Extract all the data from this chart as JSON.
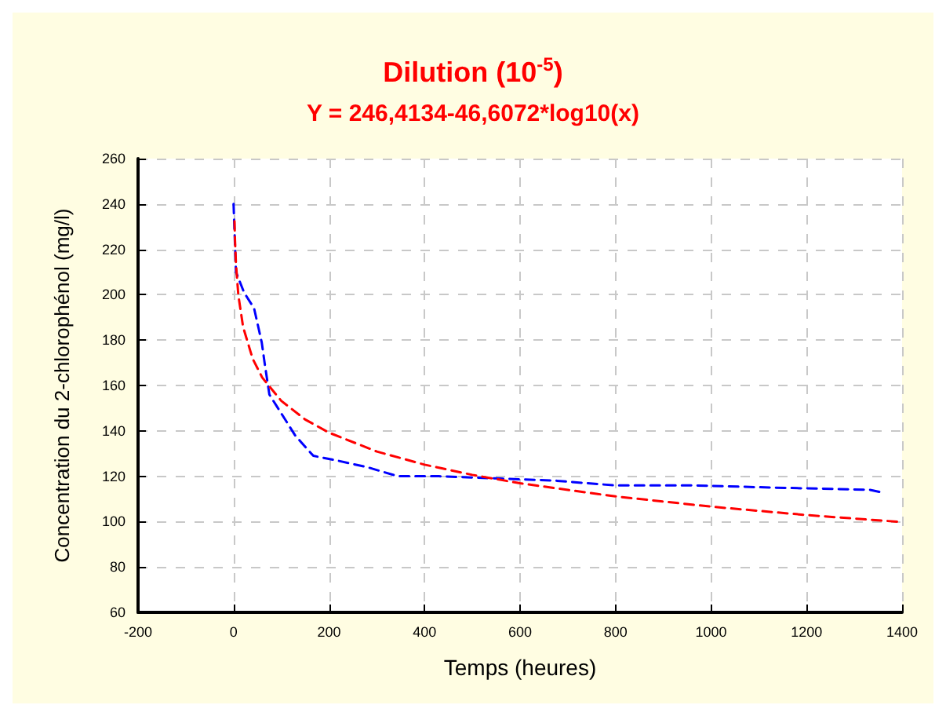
{
  "chart_data": {
    "type": "line",
    "title": "Dilution (10$^{-5}$)",
    "subtitle": "Y = 246,4134-46,6072*log10(x)",
    "xlabel": "Temps (heures)",
    "ylabel": "Concentration du 2-chlorophénol (mg/l)",
    "xlim": [
      -200,
      1400
    ],
    "xticks": [
      -200,
      0,
      200,
      400,
      600,
      800,
      1000,
      1200,
      1400
    ],
    "ylim": [
      60,
      260
    ],
    "yticks": [
      60,
      80,
      100,
      120,
      140,
      160,
      180,
      200,
      220,
      240,
      260
    ],
    "grid": true,
    "line_style": "dashed",
    "marker": "none",
    "series": [
      {
        "color": "#0000ff",
        "x": [
          0,
          3,
          5,
          22,
          43,
          59,
          65,
          75,
          102,
          129,
          167,
          215,
          280,
          344,
          430,
          559,
          677,
          796,
          957,
          1129,
          1333,
          1355
        ],
        "values": [
          240,
          222,
          210,
          201,
          194,
          179,
          170,
          156,
          147,
          138,
          129,
          127,
          124,
          120,
          120,
          119,
          118,
          116,
          116,
          115,
          114,
          113
        ]
      },
      {
        "color": "#ff0000",
        "x": [
          2,
          3,
          5,
          10,
          20,
          40,
          60,
          100,
          150,
          200,
          300,
          400,
          500,
          600,
          800,
          1000,
          1200,
          1400
        ],
        "values": [
          232.4,
          224.2,
          213.8,
          199.8,
          185.8,
          171.8,
          163.5,
          153.2,
          145,
          139.2,
          130.9,
          125.1,
          120.6,
          116.9,
          111.1,
          106.6,
          102.9,
          99.8
        ]
      }
    ]
  }
}
